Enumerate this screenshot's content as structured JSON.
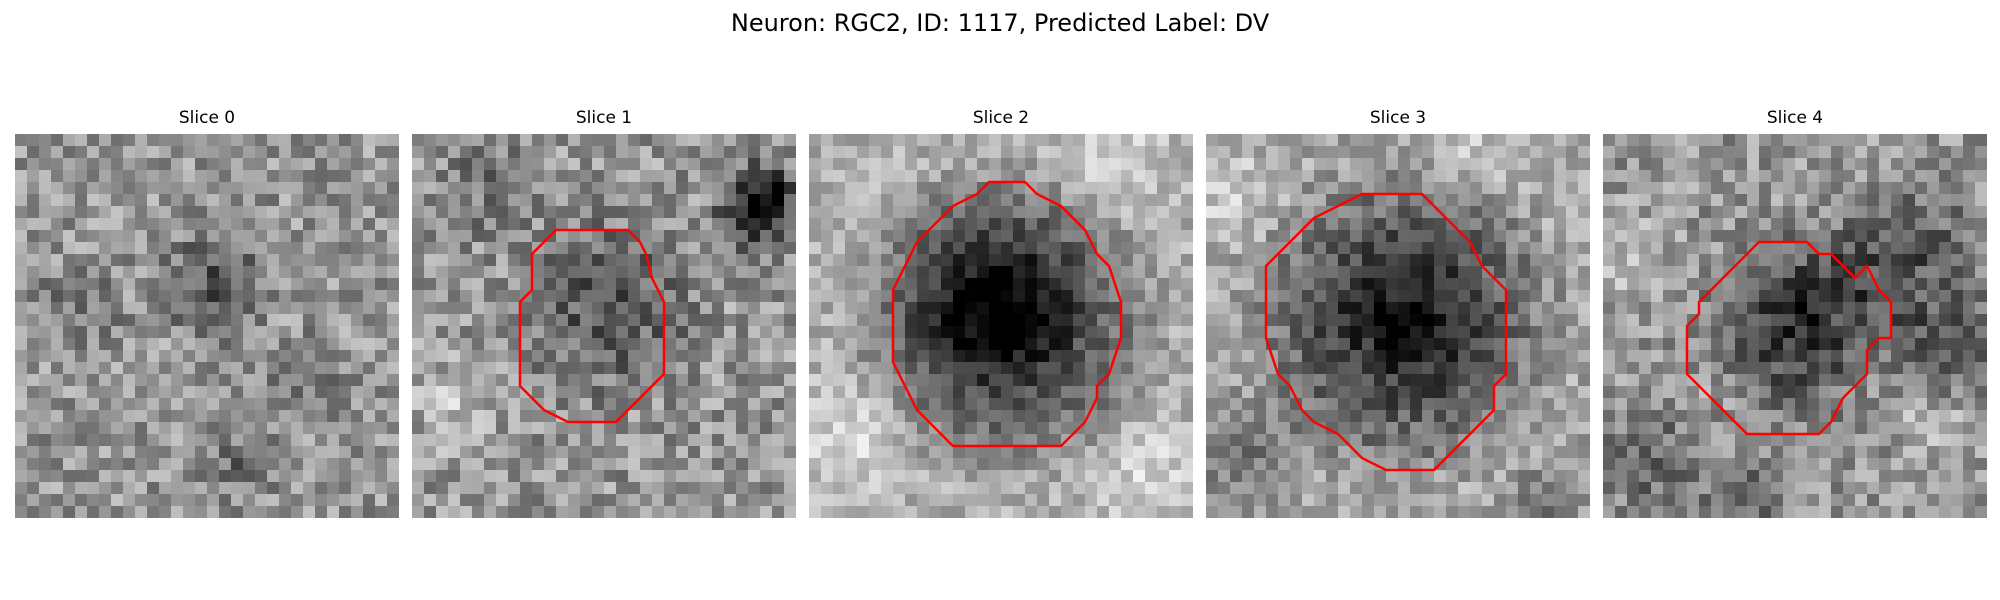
{
  "figure": {
    "title": "Neuron: RGC2, ID: 1117, Predicted Label: DV"
  },
  "panels": [
    {
      "title": "Slice 0"
    },
    {
      "title": "Slice 1"
    },
    {
      "title": "Slice 2"
    },
    {
      "title": "Slice 3"
    },
    {
      "title": "Slice 4"
    }
  ],
  "colors": {
    "contour": "#ff0000",
    "background": "#ffffff"
  }
}
